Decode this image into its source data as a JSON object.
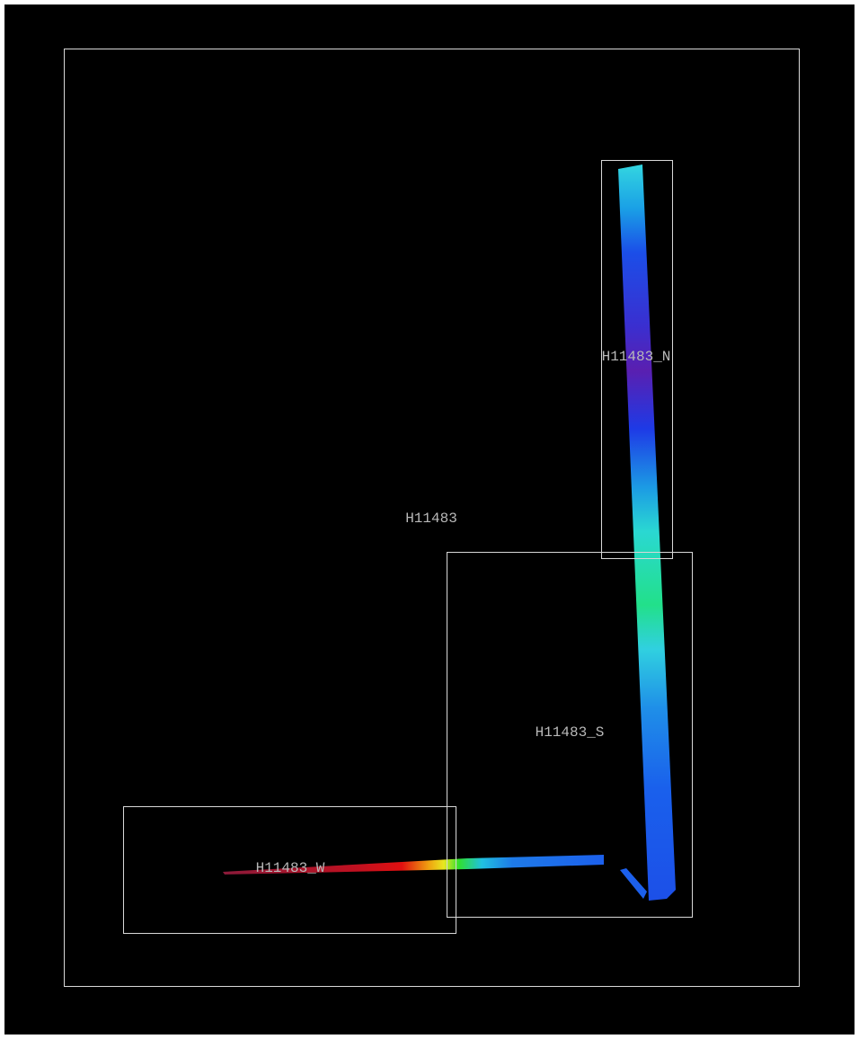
{
  "sheet": {
    "label": "H11483"
  },
  "sub_sheets": [
    {
      "label": "H11483_N"
    },
    {
      "label": "H11483_S"
    },
    {
      "label": "H11483_W"
    }
  ]
}
